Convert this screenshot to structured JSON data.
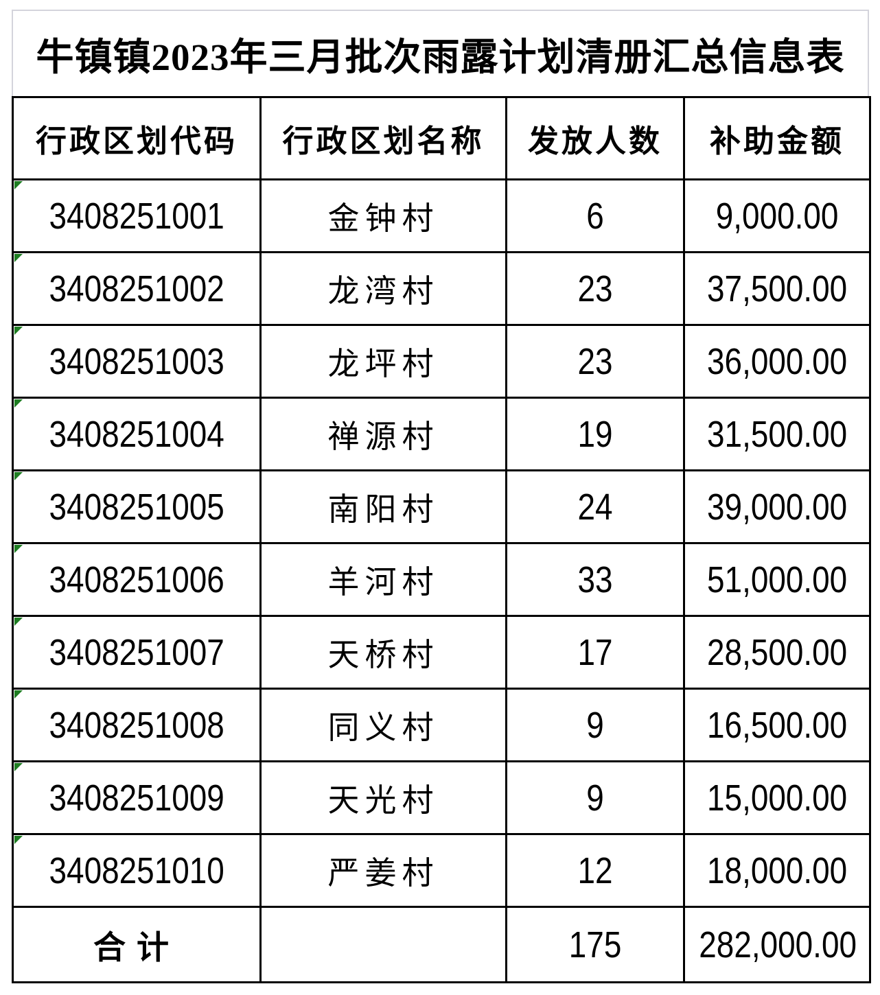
{
  "title": "牛镇镇2023年三月批次雨露计划清册汇总信息表",
  "colors": {
    "border": "#000000",
    "title_border": "#d4d4dc",
    "triangle": "#1e7d22",
    "background": "#ffffff",
    "text": "#000000"
  },
  "table": {
    "headers": [
      "行政区划代码",
      "行政区划名称",
      "发放人数",
      "补助金额"
    ],
    "rows": [
      {
        "code": "3408251001",
        "name": "金钟村",
        "count": "6",
        "amount": "9,000.00"
      },
      {
        "code": "3408251002",
        "name": "龙湾村",
        "count": "23",
        "amount": "37,500.00"
      },
      {
        "code": "3408251003",
        "name": "龙坪村",
        "count": "23",
        "amount": "36,000.00"
      },
      {
        "code": "3408251004",
        "name": "禅源村",
        "count": "19",
        "amount": "31,500.00"
      },
      {
        "code": "3408251005",
        "name": "南阳村",
        "count": "24",
        "amount": "39,000.00"
      },
      {
        "code": "3408251006",
        "name": "羊河村",
        "count": "33",
        "amount": "51,000.00"
      },
      {
        "code": "3408251007",
        "name": "天桥村",
        "count": "17",
        "amount": "28,500.00"
      },
      {
        "code": "3408251008",
        "name": "同义村",
        "count": "9",
        "amount": "16,500.00"
      },
      {
        "code": "3408251009",
        "name": "天光村",
        "count": "9",
        "amount": "15,000.00"
      },
      {
        "code": "3408251010",
        "name": "严姜村",
        "count": "12",
        "amount": "18,000.00"
      }
    ],
    "total": {
      "label": "合计",
      "name": "",
      "count": "175",
      "amount": "282,000.00"
    }
  }
}
